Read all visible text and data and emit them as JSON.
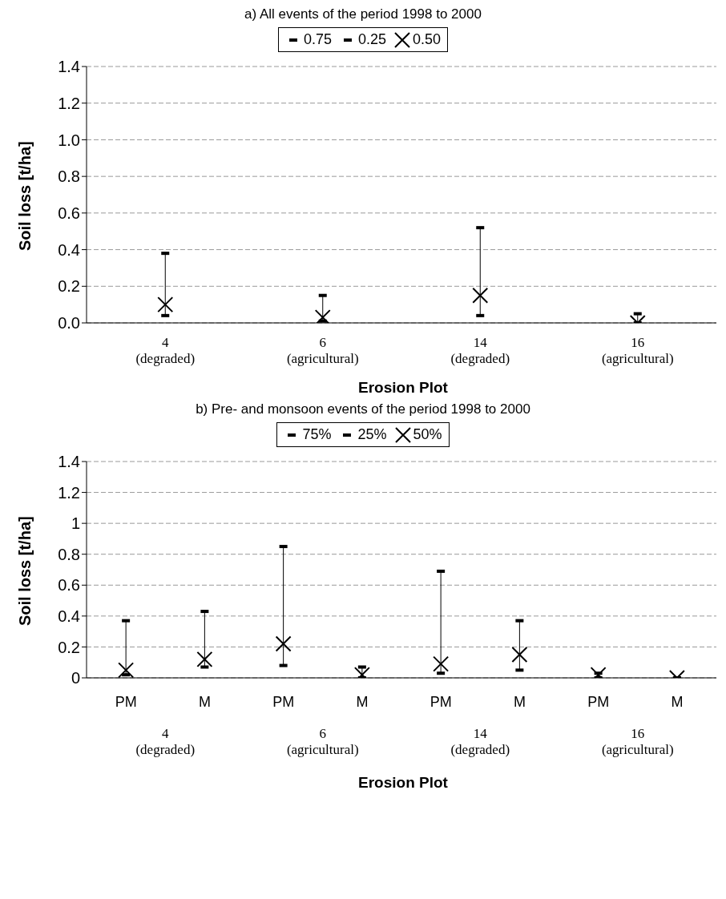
{
  "chart_data": [
    {
      "type": "scatter",
      "title": "a) All events of the period 1998 to 2000",
      "xlabel": "Erosion Plot",
      "ylabel": "Soil loss [t/ha]",
      "categories": [
        "4 (degraded)",
        "6 (agricultural)",
        "14 (degraded)",
        "16 (agricultural)"
      ],
      "series": [
        {
          "name": "0.75",
          "color": "#000000",
          "marker": "square",
          "values": [
            0.38,
            0.15,
            0.52,
            0.05
          ]
        },
        {
          "name": "0.25",
          "color": "#000000",
          "marker": "square",
          "values": [
            0.04,
            0.01,
            0.04,
            0.0
          ]
        },
        {
          "name": "0.50",
          "color": "#000000",
          "marker": "cross",
          "values": [
            0.1,
            0.03,
            0.15,
            0.0
          ]
        }
      ],
      "ylim": [
        0,
        1.4
      ],
      "yticks": [
        {
          "value": 0,
          "label": "0.0"
        },
        0.2,
        0.4,
        0.6,
        0.8,
        {
          "value": 1,
          "label": "1.0"
        },
        1.2,
        1.4
      ],
      "grid": "y",
      "legend": "top"
    },
    {
      "type": "scatter",
      "title": "b) Pre- and monsoon events of the period 1998 to 2000",
      "xlabel": "Erosion Plot",
      "ylabel": "Soil loss [t/ha]",
      "categories": [
        "PM",
        "M",
        "PM",
        "M",
        "PM",
        "M",
        "PM",
        "M"
      ],
      "annotations": [
        "4 (degraded)",
        "6 (agricultural)",
        "14 (degraded)",
        "16 (agricultural)"
      ],
      "series": [
        {
          "name": "75%",
          "color": "#000000",
          "marker": "square",
          "values": [
            0.37,
            0.43,
            0.85,
            0.07,
            0.69,
            0.37,
            0.03,
            0.0
          ]
        },
        {
          "name": "25%",
          "color": "#000000",
          "marker": "square",
          "values": [
            0.02,
            0.07,
            0.08,
            0.0,
            0.03,
            0.05,
            0.0,
            0.0
          ]
        },
        {
          "name": "50%",
          "color": "#000000",
          "marker": "cross",
          "values": [
            0.05,
            0.12,
            0.22,
            0.02,
            0.09,
            0.15,
            0.02,
            0.0
          ]
        }
      ],
      "ylim": [
        0,
        1.4
      ],
      "yticks": [
        0,
        0.2,
        0.4,
        0.6,
        0.8,
        1,
        1.2,
        1.4
      ],
      "grid": "y",
      "legend": "top"
    }
  ]
}
